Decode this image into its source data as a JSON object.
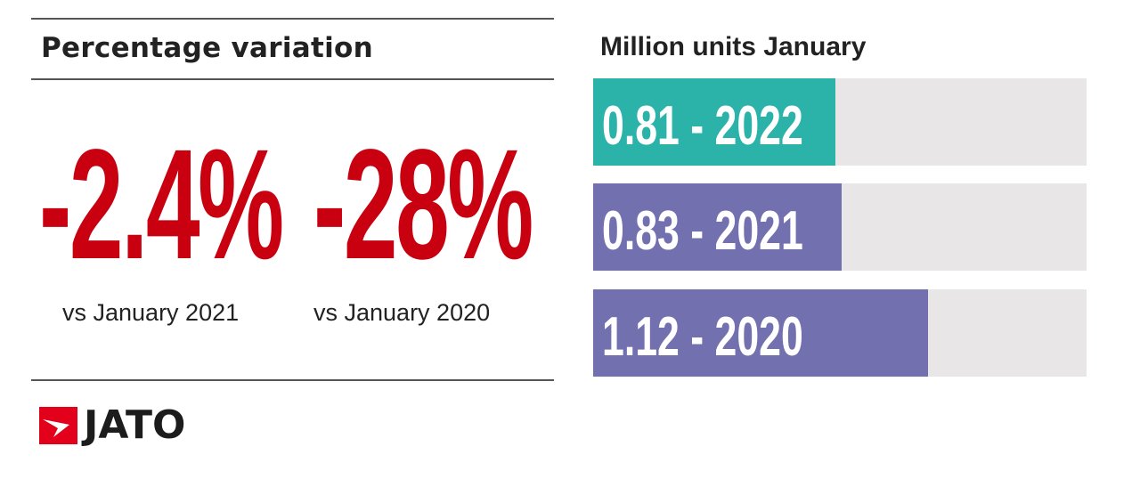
{
  "heading": "Percentage variation",
  "stats": [
    {
      "value": "-2.4%",
      "caption": "vs January 2021"
    },
    {
      "value": "-28%",
      "caption": "vs January 2020"
    }
  ],
  "logo": {
    "text": "JATO"
  },
  "chart_data": {
    "type": "bar",
    "orientation": "horizontal",
    "title": "Million units January",
    "categories": [
      "2022",
      "2021",
      "2020"
    ],
    "values": [
      0.81,
      0.83,
      1.12
    ],
    "labels": [
      "0.81 - 2022",
      "0.83 - 2021",
      "1.12 - 2020"
    ],
    "colors": [
      "#2bb3aa",
      "#7370b0",
      "#7370b0"
    ],
    "track_color": "#e8e6e7",
    "xlim": [
      0,
      1.65
    ]
  },
  "colors": {
    "accent": "#c8000f"
  }
}
